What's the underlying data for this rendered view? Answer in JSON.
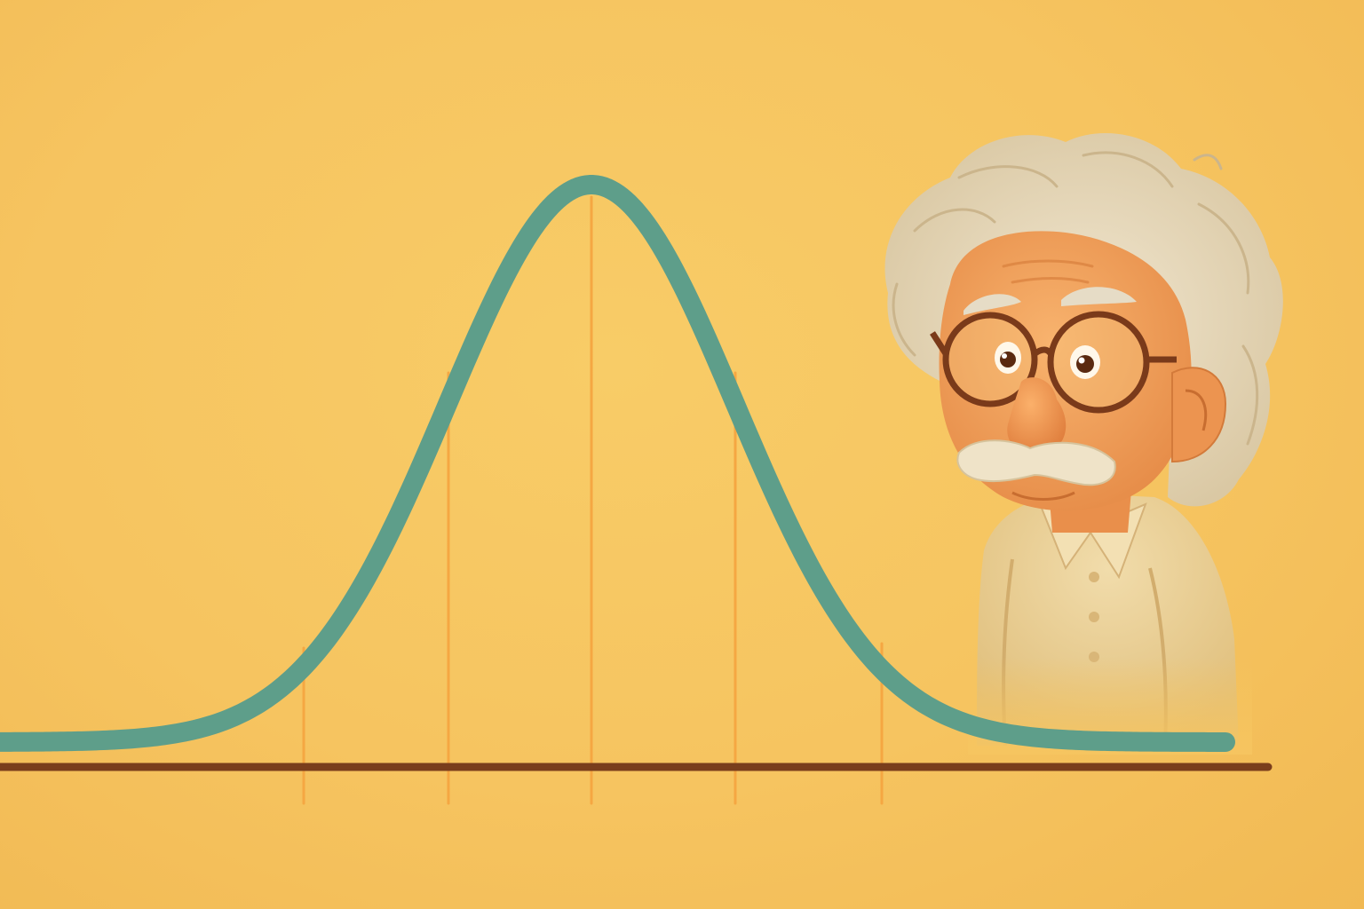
{
  "scene": {
    "background_color": "#f6c560",
    "curve": {
      "type": "normal-distribution",
      "color": "#5e9e8a"
    },
    "sigma_lines": {
      "color": "#f5a742",
      "count": 5
    },
    "baseline": {
      "color": "#7a3e1c"
    },
    "character": {
      "description_icon": "cartoon-scientist-illustration",
      "hair_color": "#e9dcc0",
      "skin_color": "#f2a25e",
      "glasses_color": "#7a3a1a",
      "shirt_color": "#ecd39a"
    }
  }
}
